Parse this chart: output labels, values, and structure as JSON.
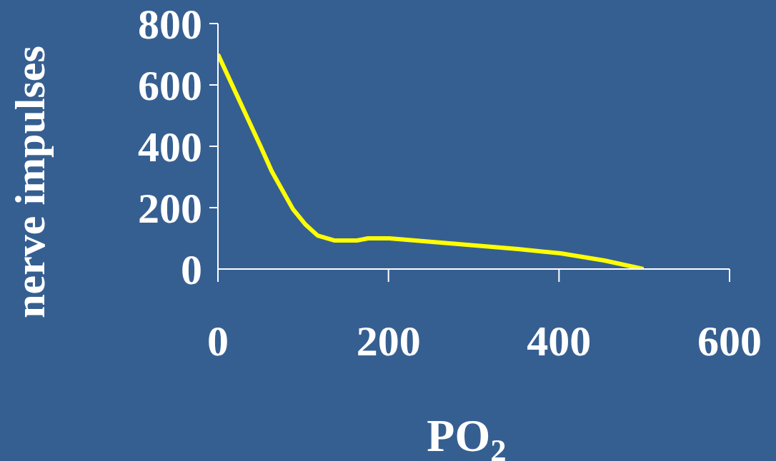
{
  "chart_data": {
    "type": "line",
    "xlabel": "PO$_{2}$",
    "ylabel": "nerve impulses",
    "x": [
      0,
      21,
      50,
      63,
      88,
      103,
      117,
      137,
      163,
      176,
      201,
      302,
      352,
      402,
      453,
      499
    ],
    "series": [
      {
        "color": "#ffff00",
        "values": [
          700,
          574,
          400,
          319,
          195,
          144,
          109,
          93,
          93,
          100,
          100,
          77,
          65,
          51,
          28,
          0
        ]
      }
    ],
    "xlim": [
      0,
      600
    ],
    "xticks": [
      0,
      200,
      400,
      600
    ],
    "ylim": [
      0,
      800
    ],
    "yticks": [
      0,
      200,
      400,
      600,
      800
    ],
    "grid": false,
    "marker": "none",
    "line_style": "solid"
  }
}
